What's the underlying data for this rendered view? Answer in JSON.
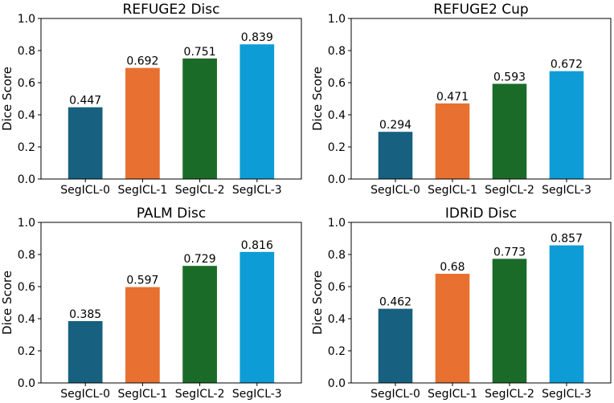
{
  "colors": [
    "#17607f",
    "#e87030",
    "#1b6b28",
    "#0e9cd6"
  ],
  "chart_data": [
    {
      "type": "bar",
      "title": "REFUGE2 Disc",
      "ylabel": "Dice Score",
      "xlabel": "",
      "categories": [
        "SegICL-0",
        "SegICL-1",
        "SegICL-2",
        "SegICL-3"
      ],
      "values": [
        0.447,
        0.692,
        0.751,
        0.839
      ],
      "value_labels": [
        "0.447",
        "0.692",
        "0.751",
        "0.839"
      ],
      "ylim": [
        0,
        1.0
      ],
      "yticks": [
        "0.0",
        "0.2",
        "0.4",
        "0.6",
        "0.8",
        "1.0"
      ],
      "grid": false
    },
    {
      "type": "bar",
      "title": "REFUGE2 Cup",
      "ylabel": "Dice Score",
      "xlabel": "",
      "categories": [
        "SegICL-0",
        "SegICL-1",
        "SegICL-2",
        "SegICL-3"
      ],
      "values": [
        0.294,
        0.471,
        0.593,
        0.672
      ],
      "value_labels": [
        "0.294",
        "0.471",
        "0.593",
        "0.672"
      ],
      "ylim": [
        0,
        1.0
      ],
      "yticks": [
        "0.0",
        "0.2",
        "0.4",
        "0.6",
        "0.8",
        "1.0"
      ],
      "grid": false
    },
    {
      "type": "bar",
      "title": "PALM Disc",
      "ylabel": "Dice Score",
      "xlabel": "",
      "categories": [
        "SegICL-0",
        "SegICL-1",
        "SegICL-2",
        "SegICL-3"
      ],
      "values": [
        0.385,
        0.597,
        0.729,
        0.816
      ],
      "value_labels": [
        "0.385",
        "0.597",
        "0.729",
        "0.816"
      ],
      "ylim": [
        0,
        1.0
      ],
      "yticks": [
        "0.0",
        "0.2",
        "0.4",
        "0.6",
        "0.8",
        "1.0"
      ],
      "grid": false
    },
    {
      "type": "bar",
      "title": "IDRiD Disc",
      "ylabel": "Dice Score",
      "xlabel": "",
      "categories": [
        "SegICL-0",
        "SegICL-1",
        "SegICL-2",
        "SegICL-3"
      ],
      "values": [
        0.462,
        0.68,
        0.773,
        0.857
      ],
      "value_labels": [
        "0.462",
        "0.68",
        "0.773",
        "0.857"
      ],
      "ylim": [
        0,
        1.0
      ],
      "yticks": [
        "0.0",
        "0.2",
        "0.4",
        "0.6",
        "0.8",
        "1.0"
      ],
      "grid": false
    }
  ]
}
